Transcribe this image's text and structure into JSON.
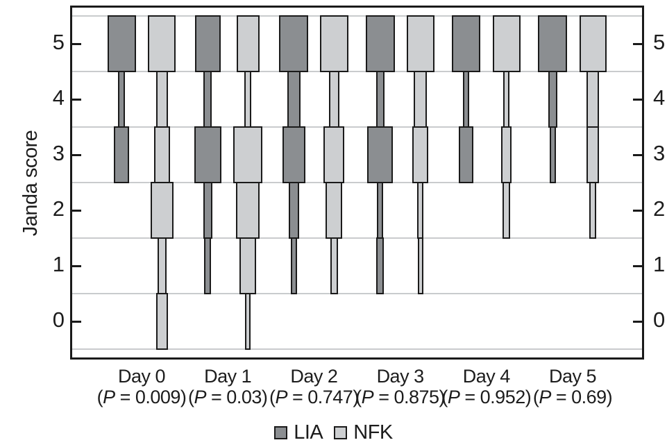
{
  "figure": {
    "y_axis_label": "Janda score",
    "legend": [
      {
        "name": "LIA",
        "color": "#8b8e91"
      },
      {
        "name": "NFK",
        "color": "#cdcfd1"
      }
    ]
  },
  "chart_data": {
    "type": "bar",
    "subtype": "variable-width-segmented-distribution",
    "title": "",
    "xlabel": "",
    "ylabel": "Janda score",
    "ylim": [
      -0.8,
      5.7
    ],
    "y_ticks": [
      5,
      4,
      3,
      2,
      1,
      0
    ],
    "y_gridlines": [
      5.5,
      4.5,
      3.5,
      2.5,
      1.5,
      0.5,
      -0.5
    ],
    "grid": true,
    "legend_position": "bottom",
    "series_names": [
      "LIA",
      "NFK"
    ],
    "colors": {
      "LIA": "#8b8e91",
      "NFK": "#cdcfd1",
      "outline": "#1a1a1a",
      "gridline": "#c9cbcd",
      "text": "#1c1c1c"
    },
    "note": "Each rectangle spans score±0.5 on the Janda scale; rectangle width is proportional to the share of patients with that score (widths below are relative units read from the plot).",
    "days": [
      {
        "label": "Day 0",
        "p_text": "(P = 0.009)",
        "p_value": "0.009",
        "LIA": [
          [
            5,
            41
          ],
          [
            4,
            10
          ],
          [
            3,
            22
          ]
        ],
        "NFK": [
          [
            5,
            40
          ],
          [
            4,
            17
          ],
          [
            3,
            23
          ],
          [
            2,
            33
          ],
          [
            1,
            13
          ],
          [
            0,
            17
          ]
        ]
      },
      {
        "label": "Day 1",
        "p_text": "(P = 0.03)",
        "p_value": "0.03",
        "LIA": [
          [
            5,
            37
          ],
          [
            4,
            12
          ],
          [
            3,
            39
          ],
          [
            2,
            13
          ],
          [
            1,
            10
          ]
        ],
        "NFK": [
          [
            5,
            33
          ],
          [
            4,
            10
          ],
          [
            3,
            42
          ],
          [
            2,
            34
          ],
          [
            1,
            24
          ],
          [
            0,
            8
          ]
        ]
      },
      {
        "label": "Day 2",
        "p_text": "(P = 0.747)",
        "p_value": "0.747",
        "LIA": [
          [
            5,
            42
          ],
          [
            4,
            19
          ],
          [
            3,
            33
          ],
          [
            2,
            15
          ],
          [
            1,
            9
          ]
        ],
        "NFK": [
          [
            5,
            41
          ],
          [
            4,
            15
          ],
          [
            3,
            30
          ],
          [
            2,
            24
          ],
          [
            1,
            11
          ]
        ]
      },
      {
        "label": "Day 3",
        "p_text": "(P = 0.875)",
        "p_value": "0.875",
        "LIA": [
          [
            5,
            42
          ],
          [
            4,
            12
          ],
          [
            3,
            37
          ],
          [
            2,
            9
          ],
          [
            1,
            11
          ]
        ],
        "NFK": [
          [
            5,
            40
          ],
          [
            4,
            19
          ],
          [
            3,
            23
          ],
          [
            2,
            9
          ],
          [
            1,
            8
          ]
        ]
      },
      {
        "label": "Day 4",
        "p_text": "(P = 0.952)",
        "p_value": "0.952",
        "LIA": [
          [
            5,
            41
          ],
          [
            4,
            9
          ],
          [
            3,
            21
          ]
        ],
        "NFK": [
          [
            5,
            40
          ],
          [
            4,
            9
          ],
          [
            3,
            15
          ],
          [
            2,
            11
          ]
        ]
      },
      {
        "label": "Day 5",
        "p_text": "(P = 0.69)",
        "p_value": "0.69",
        "LIA": [
          [
            5,
            42
          ],
          [
            4,
            13
          ],
          [
            3,
            9
          ]
        ],
        "NFK": [
          [
            5,
            39
          ],
          [
            4,
            18
          ],
          [
            3,
            18
          ],
          [
            2,
            10
          ]
        ]
      }
    ]
  }
}
